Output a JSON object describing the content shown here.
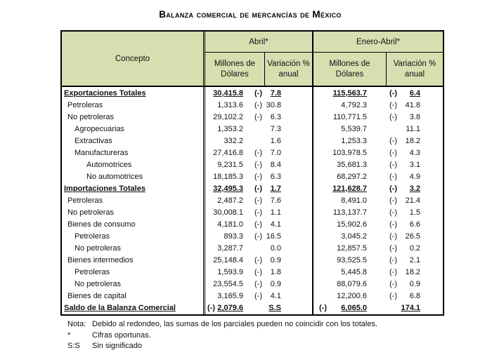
{
  "title": "Balanza comercial de mercancías de México",
  "colors": {
    "header_bg": "#d5dfb0",
    "border": "#000000",
    "text": "#111111",
    "page_bg": "#ffffff"
  },
  "table": {
    "concept_header": "Concepto",
    "groups": [
      {
        "label": "Abril*",
        "sub": [
          "Millones de\nDólares",
          "Variación %\nanual"
        ]
      },
      {
        "label": "Enero-Abril*",
        "sub": [
          "Millones de\nDólares",
          "Variación %\nanual"
        ]
      }
    ],
    "rows": [
      {
        "label": "Exportaciones Totales",
        "indent": 0,
        "total": true,
        "abril_mlns_sign": "",
        "abril_mlns": "30,415.8",
        "abril_var_sign": "(-)",
        "abril_var": "7.8",
        "enero_mlns_sign": "",
        "enero_mlns": "115,563.7",
        "enero_var_sign": "(-)",
        "enero_var": "6.4"
      },
      {
        "label": "Petroleras",
        "indent": 1,
        "total": false,
        "abril_mlns_sign": "",
        "abril_mlns": "1,313.6",
        "abril_var_sign": "(-)",
        "abril_var": "30.8",
        "enero_mlns_sign": "",
        "enero_mlns": "4,792.3",
        "enero_var_sign": "(-)",
        "enero_var": "41.8"
      },
      {
        "label": "No petroleras",
        "indent": 1,
        "total": false,
        "abril_mlns_sign": "",
        "abril_mlns": "29,102.2",
        "abril_var_sign": "(-)",
        "abril_var": "6.3",
        "enero_mlns_sign": "",
        "enero_mlns": "110,771.5",
        "enero_var_sign": "(-)",
        "enero_var": "3.8"
      },
      {
        "label": "Agropecuarias",
        "indent": 2,
        "total": false,
        "abril_mlns_sign": "",
        "abril_mlns": "1,353.2",
        "abril_var_sign": "",
        "abril_var": "7.3",
        "enero_mlns_sign": "",
        "enero_mlns": "5,539.7",
        "enero_var_sign": "",
        "enero_var": "11.1"
      },
      {
        "label": "Extractivas",
        "indent": 2,
        "total": false,
        "abril_mlns_sign": "",
        "abril_mlns": "332.2",
        "abril_var_sign": "",
        "abril_var": "1.6",
        "enero_mlns_sign": "",
        "enero_mlns": "1,253.3",
        "enero_var_sign": "(-)",
        "enero_var": "18.2"
      },
      {
        "label": "Manufactureras",
        "indent": 2,
        "total": false,
        "abril_mlns_sign": "",
        "abril_mlns": "27,416.8",
        "abril_var_sign": "(-)",
        "abril_var": "7.0",
        "enero_mlns_sign": "",
        "enero_mlns": "103,978.5",
        "enero_var_sign": "(-)",
        "enero_var": "4.3"
      },
      {
        "label": "Automotrices",
        "indent": 3,
        "total": false,
        "abril_mlns_sign": "",
        "abril_mlns": "9,231.5",
        "abril_var_sign": "(-)",
        "abril_var": "8.4",
        "enero_mlns_sign": "",
        "enero_mlns": "35,681.3",
        "enero_var_sign": "(-)",
        "enero_var": "3.1"
      },
      {
        "label": "No automotrices",
        "indent": 3,
        "total": false,
        "abril_mlns_sign": "",
        "abril_mlns": "18,185.3",
        "abril_var_sign": "(-)",
        "abril_var": "6.3",
        "enero_mlns_sign": "",
        "enero_mlns": "68,297.2",
        "enero_var_sign": "(-)",
        "enero_var": "4.9"
      },
      {
        "label": "Importaciones Totales",
        "indent": 0,
        "total": true,
        "abril_mlns_sign": "",
        "abril_mlns": "32,495.3",
        "abril_var_sign": "(-)",
        "abril_var": "1.7",
        "enero_mlns_sign": "",
        "enero_mlns": "121,628.7",
        "enero_var_sign": "(-)",
        "enero_var": "3.2"
      },
      {
        "label": "Petroleras",
        "indent": 1,
        "total": false,
        "abril_mlns_sign": "",
        "abril_mlns": "2,487.2",
        "abril_var_sign": "(-)",
        "abril_var": "7.6",
        "enero_mlns_sign": "",
        "enero_mlns": "8,491.0",
        "enero_var_sign": "(-)",
        "enero_var": "21.4"
      },
      {
        "label": "No petroleras",
        "indent": 1,
        "total": false,
        "abril_mlns_sign": "",
        "abril_mlns": "30,008.1",
        "abril_var_sign": "(-)",
        "abril_var": "1.1",
        "enero_mlns_sign": "",
        "enero_mlns": "113,137.7",
        "enero_var_sign": "(-)",
        "enero_var": "1.5"
      },
      {
        "label": "Bienes de consumo",
        "indent": 1,
        "total": false,
        "abril_mlns_sign": "",
        "abril_mlns": "4,181.0",
        "abril_var_sign": "(-)",
        "abril_var": "4.1",
        "enero_mlns_sign": "",
        "enero_mlns": "15,902.6",
        "enero_var_sign": "(-)",
        "enero_var": "6.6"
      },
      {
        "label": "Petroleras",
        "indent": 2,
        "total": false,
        "abril_mlns_sign": "",
        "abril_mlns": "893.3",
        "abril_var_sign": "(-)",
        "abril_var": "16.5",
        "enero_mlns_sign": "",
        "enero_mlns": "3,045.2",
        "enero_var_sign": "(-)",
        "enero_var": "26.5"
      },
      {
        "label": "No petroleras",
        "indent": 2,
        "total": false,
        "abril_mlns_sign": "",
        "abril_mlns": "3,287.7",
        "abril_var_sign": "",
        "abril_var": "0.0",
        "enero_mlns_sign": "",
        "enero_mlns": "12,857.5",
        "enero_var_sign": "(-)",
        "enero_var": "0.2"
      },
      {
        "label": "Bienes intermedios",
        "indent": 1,
        "total": false,
        "abril_mlns_sign": "",
        "abril_mlns": "25,148.4",
        "abril_var_sign": "(-)",
        "abril_var": "0.9",
        "enero_mlns_sign": "",
        "enero_mlns": "93,525.5",
        "enero_var_sign": "(-)",
        "enero_var": "2.1"
      },
      {
        "label": "Petroleras",
        "indent": 2,
        "total": false,
        "abril_mlns_sign": "",
        "abril_mlns": "1,593.9",
        "abril_var_sign": "(-)",
        "abril_var": "1.8",
        "enero_mlns_sign": "",
        "enero_mlns": "5,445.8",
        "enero_var_sign": "(-)",
        "enero_var": "18.2"
      },
      {
        "label": "No petroleras",
        "indent": 2,
        "total": false,
        "abril_mlns_sign": "",
        "abril_mlns": "23,554.5",
        "abril_var_sign": "(-)",
        "abril_var": "0.9",
        "enero_mlns_sign": "",
        "enero_mlns": "88,079.6",
        "enero_var_sign": "(-)",
        "enero_var": "0.9"
      },
      {
        "label": "Bienes de capital",
        "indent": 1,
        "total": false,
        "abril_mlns_sign": "",
        "abril_mlns": "3,165.9",
        "abril_var_sign": "(-)",
        "abril_var": "4.1",
        "enero_mlns_sign": "",
        "enero_mlns": "12,200.6",
        "enero_var_sign": "(-)",
        "enero_var": "6.8"
      },
      {
        "label": "Saldo de la Balanza Comercial",
        "indent": 0,
        "total": true,
        "abril_mlns_sign": "(-)",
        "abril_mlns": "2,079.6",
        "abril_var_sign": "",
        "abril_var": "S.S",
        "enero_mlns_sign": "(-)",
        "enero_mlns": "6,065.0",
        "enero_var_sign": "",
        "enero_var": "174.1"
      }
    ]
  },
  "footnotes": [
    {
      "label": "Nota:",
      "text": "Debido al redondeo, las sumas de los parciales pueden no coincidir con los totales."
    },
    {
      "label": "*",
      "text": "Cifras oportunas."
    },
    {
      "label": "S:S",
      "text": "Sin significado"
    }
  ]
}
